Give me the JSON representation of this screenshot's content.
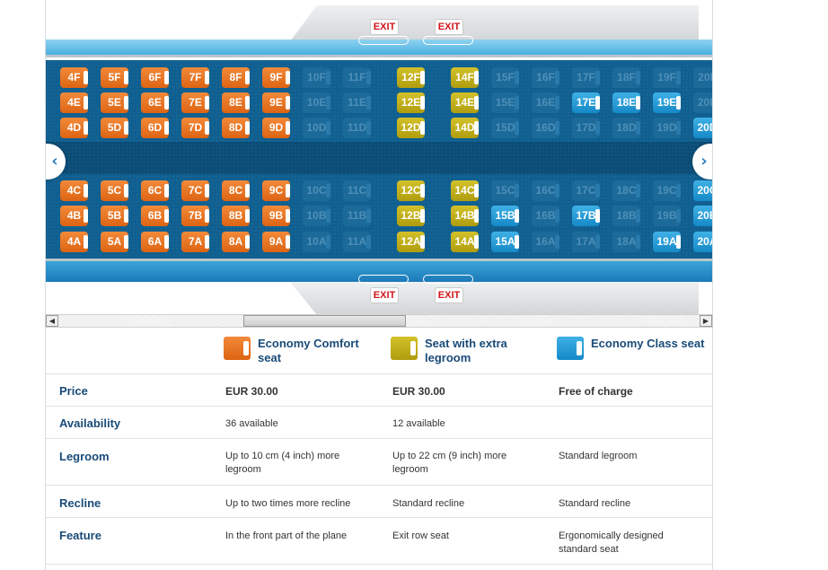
{
  "exit_label": "EXIT",
  "nav": {
    "prev_icon": "chevron-left-icon",
    "next_icon": "chevron-right-icon",
    "prev_glyph": "‹",
    "next_glyph": "›"
  },
  "colors": {
    "economy_comfort": "#e8701f",
    "extra_legroom": "#c4b11a",
    "economy_class": "#2aa0da",
    "unavailable": "#1b6a9a",
    "exit": "#d0151b"
  },
  "seat_map": {
    "columns": [
      {
        "row": "4",
        "F": "orange",
        "E": "orange",
        "D": "orange",
        "C": "orange",
        "B": "orange",
        "A": "orange"
      },
      {
        "row": "5",
        "F": "orange",
        "E": "orange",
        "D": "orange",
        "C": "orange",
        "B": "orange",
        "A": "orange"
      },
      {
        "row": "6",
        "F": "orange",
        "E": "orange",
        "D": "orange",
        "C": "orange",
        "B": "orange",
        "A": "orange"
      },
      {
        "row": "7",
        "F": "orange",
        "E": "orange",
        "D": "orange",
        "C": "orange",
        "B": "orange",
        "A": "orange"
      },
      {
        "row": "8",
        "F": "orange",
        "E": "orange",
        "D": "orange",
        "C": "orange",
        "B": "orange",
        "A": "orange"
      },
      {
        "row": "9",
        "F": "orange",
        "E": "orange",
        "D": "orange",
        "C": "orange",
        "B": "orange",
        "A": "orange"
      },
      {
        "row": "10",
        "F": "disabled",
        "E": "disabled",
        "D": "disabled",
        "C": "disabled",
        "B": "disabled",
        "A": "disabled"
      },
      {
        "row": "11",
        "F": "disabled",
        "E": "disabled",
        "D": "disabled",
        "C": "disabled",
        "B": "disabled",
        "A": "disabled"
      },
      {
        "row": "12",
        "F": "yellow",
        "E": "yellow",
        "D": "yellow",
        "C": "yellow",
        "B": "yellow",
        "A": "yellow"
      },
      {
        "row": "14",
        "F": "yellow",
        "E": "yellow",
        "D": "yellow",
        "C": "yellow",
        "B": "yellow",
        "A": "yellow"
      },
      {
        "row": "15",
        "F": "disabled",
        "E": "disabled",
        "D": "disabled",
        "C": "disabled",
        "B": "blue",
        "A": "blue"
      },
      {
        "row": "16",
        "F": "disabled",
        "E": "disabled",
        "D": "disabled",
        "C": "disabled",
        "B": "disabled",
        "A": "disabled"
      },
      {
        "row": "17",
        "F": "disabled",
        "E": "blue",
        "D": "disabled",
        "C": "disabled",
        "B": "blue",
        "A": "disabled"
      },
      {
        "row": "18",
        "F": "disabled",
        "E": "blue",
        "D": "disabled",
        "C": "disabled",
        "B": "disabled",
        "A": "disabled"
      },
      {
        "row": "19",
        "F": "disabled",
        "E": "blue",
        "D": "disabled",
        "C": "disabled",
        "B": "disabled",
        "A": "blue"
      },
      {
        "row": "20",
        "F": "disabled",
        "E": "disabled",
        "D": "blue",
        "C": "blue",
        "B": "blue",
        "A": "blue"
      }
    ]
  },
  "legend": [
    {
      "title": "Economy Comfort seat",
      "color": "orange"
    },
    {
      "title": "Seat with extra legroom",
      "color": "yellow"
    },
    {
      "title": "Economy Class seat",
      "color": "blue"
    }
  ],
  "table": {
    "rows": [
      {
        "label": "Price",
        "values": [
          "EUR 30.00",
          "EUR 30.00",
          "Free of charge"
        ]
      },
      {
        "label": "Availability",
        "values": [
          "36 available",
          "12 available",
          ""
        ]
      },
      {
        "label": "Legroom",
        "values": [
          "Up to 10 cm (4 inch) more legroom",
          "Up to 22 cm (9 inch) more legroom",
          "Standard legroom"
        ]
      },
      {
        "label": "Recline",
        "values": [
          "Up to two times more recline",
          "Standard recline",
          "Standard recline"
        ]
      },
      {
        "label": "Feature",
        "values": [
          "In the front part of the plane",
          "Exit row seat",
          "Ergonomically designed standard seat"
        ]
      }
    ]
  }
}
